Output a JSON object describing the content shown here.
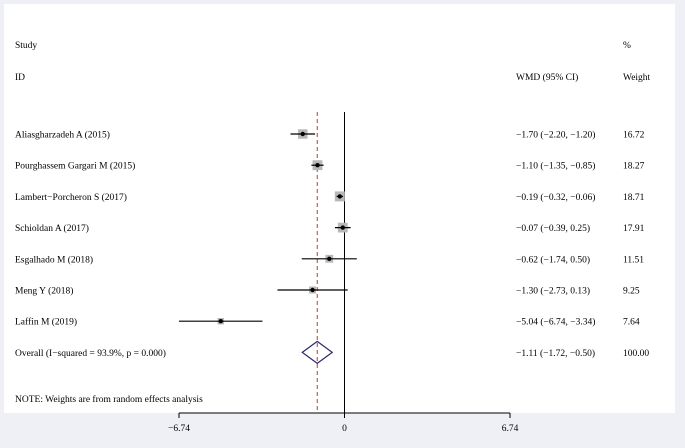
{
  "chart_data": {
    "type": "forest",
    "header": {
      "study_line1": "Study",
      "study_line2": "ID",
      "effect_label": "WMD (95% CI)",
      "weight_line1": "%",
      "weight_line2": "Weight"
    },
    "studies": [
      {
        "label": "Aliasgharzadeh A (2015)",
        "est": -1.7,
        "lo": -2.2,
        "hi": -1.2,
        "ci_text": "−1.70 (−2.20, −1.20)",
        "weight": 16.72,
        "weight_text": "16.72"
      },
      {
        "label": "Pourghassem Gargari M (2015)",
        "est": -1.1,
        "lo": -1.35,
        "hi": -0.85,
        "ci_text": "−1.10 (−1.35, −0.85)",
        "weight": 18.27,
        "weight_text": "18.27"
      },
      {
        "label": "Lambert−Porcheron S (2017)",
        "est": -0.19,
        "lo": -0.32,
        "hi": -0.06,
        "ci_text": "−0.19 (−0.32, −0.06)",
        "weight": 18.71,
        "weight_text": "18.71"
      },
      {
        "label": "Schioldan A (2017)",
        "est": -0.07,
        "lo": -0.39,
        "hi": 0.25,
        "ci_text": "−0.07 (−0.39, 0.25)",
        "weight": 17.91,
        "weight_text": "17.91"
      },
      {
        "label": "Esgalhado M (2018)",
        "est": -0.62,
        "lo": -1.74,
        "hi": 0.5,
        "ci_text": "−0.62 (−1.74, 0.50)",
        "weight": 11.51,
        "weight_text": "11.51"
      },
      {
        "label": "Meng Y (2018)",
        "est": -1.3,
        "lo": -2.73,
        "hi": 0.13,
        "ci_text": "−1.30 (−2.73, 0.13)",
        "weight": 9.25,
        "weight_text": "9.25"
      },
      {
        "label": "Laffin M (2019)",
        "est": -5.04,
        "lo": -6.74,
        "hi": -3.34,
        "ci_text": "−5.04 (−6.74, −3.34)",
        "weight": 7.64,
        "weight_text": "7.64"
      }
    ],
    "overall": {
      "label": "Overall  (I−squared = 93.9%, p = 0.000)",
      "est": -1.11,
      "lo": -1.72,
      "hi": -0.5,
      "ci_text": "−1.11 (−1.72, −0.50)",
      "weight_text": "100.00"
    },
    "note": "NOTE: Weights are from random effects analysis",
    "x_ticks": [
      {
        "value": -6.74,
        "label": "−6.74"
      },
      {
        "value": 0,
        "label": "0"
      },
      {
        "value": 6.74,
        "label": "6.74"
      }
    ],
    "xlim": [
      -6.74,
      6.74
    ],
    "colors": {
      "background": "#ffffff",
      "plot_area": "#ffffff",
      "outer_background": "#eef0f6",
      "diamond": "#2a2a6e",
      "overall_line": "#c0392b",
      "weight_box": "#b8b8b8",
      "ink": "#000000"
    }
  }
}
